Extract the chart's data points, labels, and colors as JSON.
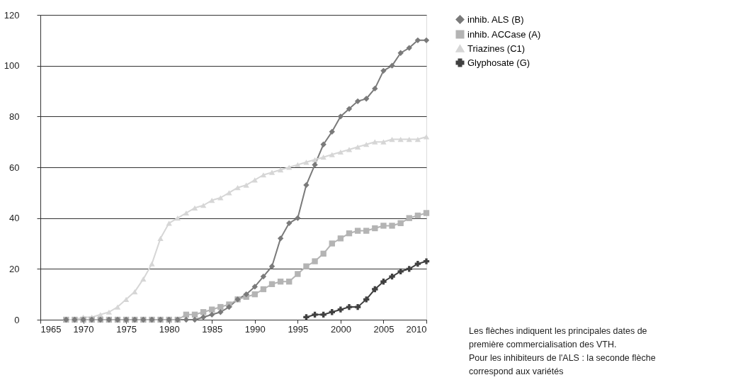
{
  "chart_data": {
    "type": "line",
    "xlim": [
      1965,
      2010
    ],
    "xticks": [
      1965,
      1970,
      1975,
      1980,
      1985,
      1990,
      1995,
      2000,
      2005,
      2010
    ],
    "ylim": [
      0,
      120
    ],
    "yticks": [
      0,
      20,
      40,
      60,
      80,
      100,
      120
    ],
    "grid": "y",
    "legend": "right",
    "annotations": [
      "Les flèches indiquent les principales dates de\npremière commercialisation des VTH.\nPour les inhibiteurs de l'ALS : la seconde flèche\ncorrespond aux variétés"
    ],
    "series": [
      {
        "name": "inhib. ALS (B)",
        "color": "#7a7a7a",
        "marker": "diamond",
        "x": [
          1968,
          1969,
          1970,
          1971,
          1972,
          1973,
          1974,
          1975,
          1976,
          1977,
          1978,
          1979,
          1980,
          1981,
          1982,
          1983,
          1984,
          1985,
          1986,
          1987,
          1988,
          1989,
          1990,
          1991,
          1992,
          1993,
          1994,
          1995,
          1996,
          1997,
          1998,
          1999,
          2000,
          2001,
          2002,
          2003,
          2004,
          2005,
          2006,
          2007,
          2008,
          2009,
          2010
        ],
        "values": [
          0,
          0,
          0,
          0,
          0,
          0,
          0,
          0,
          0,
          0,
          0,
          0,
          0,
          0,
          0,
          0,
          1,
          2,
          3,
          5,
          8,
          10,
          13,
          17,
          21,
          32,
          38,
          40,
          53,
          61,
          69,
          74,
          80,
          83,
          86,
          87,
          91,
          98,
          100,
          105,
          107,
          110,
          110
        ]
      },
      {
        "name": "inhib. ACCase (A)",
        "color": "#b4b4b4",
        "marker": "square",
        "x": [
          1968,
          1969,
          1970,
          1971,
          1972,
          1973,
          1974,
          1975,
          1976,
          1977,
          1978,
          1979,
          1980,
          1981,
          1982,
          1983,
          1984,
          1985,
          1986,
          1987,
          1988,
          1989,
          1990,
          1991,
          1992,
          1993,
          1994,
          1995,
          1996,
          1997,
          1998,
          1999,
          2000,
          2001,
          2002,
          2003,
          2004,
          2005,
          2006,
          2007,
          2008,
          2009,
          2010
        ],
        "values": [
          0,
          0,
          0,
          0,
          0,
          0,
          0,
          0,
          0,
          0,
          0,
          0,
          0,
          0,
          2,
          2,
          3,
          4,
          5,
          6,
          8,
          9,
          10,
          12,
          14,
          15,
          15,
          18,
          21,
          23,
          26,
          30,
          32,
          34,
          35,
          35,
          36,
          37,
          37,
          38,
          40,
          41,
          42
        ]
      },
      {
        "name": "Triazines (C1)",
        "color": "#d6d6d6",
        "marker": "triangle",
        "x": [
          1968,
          1969,
          1970,
          1971,
          1972,
          1973,
          1974,
          1975,
          1976,
          1977,
          1978,
          1979,
          1980,
          1981,
          1982,
          1983,
          1984,
          1985,
          1986,
          1987,
          1988,
          1989,
          1990,
          1991,
          1992,
          1993,
          1994,
          1995,
          1996,
          1997,
          1998,
          1999,
          2000,
          2001,
          2002,
          2003,
          2004,
          2005,
          2006,
          2007,
          2008,
          2009,
          2010
        ],
        "values": [
          0,
          0,
          1,
          1,
          2,
          3,
          5,
          8,
          11,
          16,
          22,
          32,
          38,
          40,
          42,
          44,
          45,
          47,
          48,
          50,
          52,
          53,
          55,
          57,
          58,
          59,
          60,
          61,
          62,
          63,
          64,
          65,
          66,
          67,
          68,
          69,
          70,
          70,
          71,
          71,
          71,
          71,
          72
        ]
      },
      {
        "name": "Glyphosate (G)",
        "color": "#404040",
        "marker": "cross",
        "x": [
          1996,
          1997,
          1998,
          1999,
          2000,
          2001,
          2002,
          2003,
          2004,
          2005,
          2006,
          2007,
          2008,
          2009,
          2010
        ],
        "values": [
          1,
          2,
          2,
          3,
          4,
          5,
          5,
          8,
          12,
          15,
          17,
          19,
          20,
          22,
          23
        ]
      }
    ]
  }
}
